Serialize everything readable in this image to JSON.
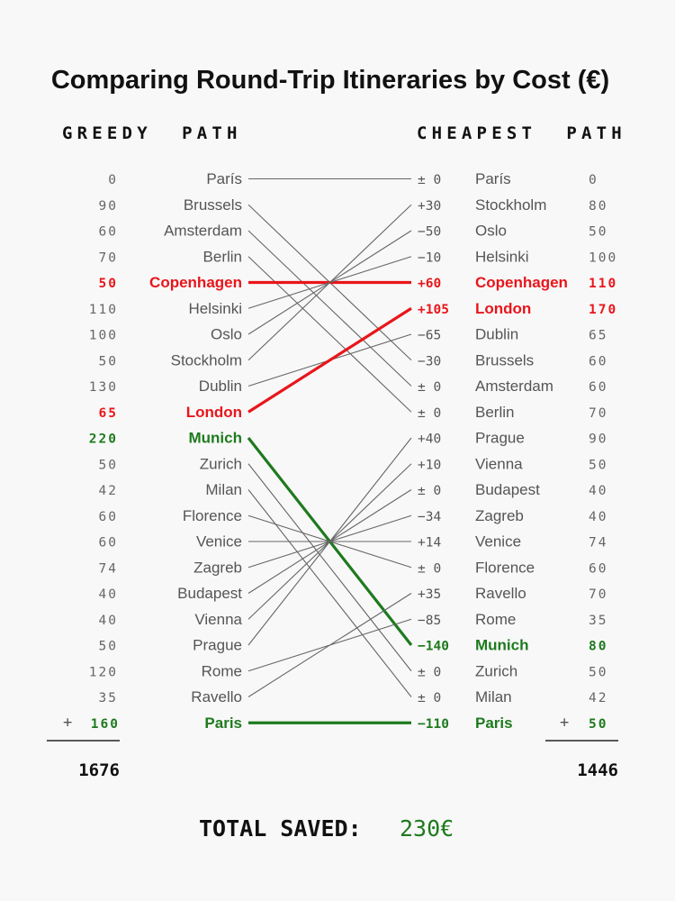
{
  "chart_data": {
    "type": "slopegraph",
    "title": "Comparing Round-Trip Itineraries by Cost (€)",
    "left_header": "GREEDY  PATH",
    "right_header": "CHEAPEST  PATH",
    "greedy_path": [
      {
        "city": "París",
        "cost": "0"
      },
      {
        "city": "Brussels",
        "cost": "90"
      },
      {
        "city": "Amsterdam",
        "cost": "60"
      },
      {
        "city": "Berlin",
        "cost": "70"
      },
      {
        "city": "Copenhagen",
        "cost": "50",
        "highlight": "red"
      },
      {
        "city": "Helsinki",
        "cost": "110"
      },
      {
        "city": "Oslo",
        "cost": "100"
      },
      {
        "city": "Stockholm",
        "cost": "50"
      },
      {
        "city": "Dublin",
        "cost": "130"
      },
      {
        "city": "London",
        "cost": "65",
        "highlight": "red"
      },
      {
        "city": "Munich",
        "cost": "220",
        "highlight": "green"
      },
      {
        "city": "Zurich",
        "cost": "50"
      },
      {
        "city": "Milan",
        "cost": "42"
      },
      {
        "city": "Florence",
        "cost": "60"
      },
      {
        "city": "Venice",
        "cost": "60"
      },
      {
        "city": "Zagreb",
        "cost": "74"
      },
      {
        "city": "Budapest",
        "cost": "40"
      },
      {
        "city": "Vienna",
        "cost": "40"
      },
      {
        "city": "Prague",
        "cost": "50"
      },
      {
        "city": "Rome",
        "cost": "120"
      },
      {
        "city": "Ravello",
        "cost": "35"
      },
      {
        "city": "Paris",
        "cost": "160",
        "highlight": "green"
      }
    ],
    "cheapest_path": [
      {
        "city": "París",
        "cost": "0",
        "delta": "± 0"
      },
      {
        "city": "Stockholm",
        "cost": "80",
        "delta": "+30"
      },
      {
        "city": "Oslo",
        "cost": "50",
        "delta": "−50"
      },
      {
        "city": "Helsinki",
        "cost": "100",
        "delta": "−10"
      },
      {
        "city": "Copenhagen",
        "cost": "110",
        "delta": "+60",
        "highlight": "red"
      },
      {
        "city": "London",
        "cost": "170",
        "delta": "+105",
        "highlight": "red"
      },
      {
        "city": "Dublin",
        "cost": "65",
        "delta": "−65"
      },
      {
        "city": "Brussels",
        "cost": "60",
        "delta": "−30"
      },
      {
        "city": "Amsterdam",
        "cost": "60",
        "delta": "± 0"
      },
      {
        "city": "Berlin",
        "cost": "70",
        "delta": "± 0"
      },
      {
        "city": "Prague",
        "cost": "90",
        "delta": "+40"
      },
      {
        "city": "Vienna",
        "cost": "50",
        "delta": "+10"
      },
      {
        "city": "Budapest",
        "cost": "40",
        "delta": "± 0"
      },
      {
        "city": "Zagreb",
        "cost": "40",
        "delta": "−34"
      },
      {
        "city": "Venice",
        "cost": "74",
        "delta": "+14"
      },
      {
        "city": "Florence",
        "cost": "60",
        "delta": "± 0"
      },
      {
        "city": "Ravello",
        "cost": "70",
        "delta": "+35"
      },
      {
        "city": "Rome",
        "cost": "35",
        "delta": "−85"
      },
      {
        "city": "Munich",
        "cost": "80",
        "delta": "−140",
        "highlight": "green"
      },
      {
        "city": "Zurich",
        "cost": "50",
        "delta": "± 0"
      },
      {
        "city": "Milan",
        "cost": "42",
        "delta": "± 0"
      },
      {
        "city": "Paris",
        "cost": "50",
        "delta": "−110",
        "highlight": "green"
      }
    ],
    "connections": [
      [
        0,
        0
      ],
      [
        1,
        7
      ],
      [
        2,
        8
      ],
      [
        3,
        9
      ],
      [
        4,
        4
      ],
      [
        5,
        3
      ],
      [
        6,
        2
      ],
      [
        7,
        1
      ],
      [
        8,
        6
      ],
      [
        9,
        5
      ],
      [
        10,
        18
      ],
      [
        11,
        19
      ],
      [
        12,
        20
      ],
      [
        13,
        15
      ],
      [
        14,
        14
      ],
      [
        15,
        13
      ],
      [
        16,
        12
      ],
      [
        17,
        11
      ],
      [
        18,
        10
      ],
      [
        19,
        17
      ],
      [
        20,
        16
      ],
      [
        21,
        21
      ]
    ],
    "plus_sign": "+",
    "greedy_total": "1676",
    "cheapest_total": "1446",
    "total_saved_label": "TOTAL SAVED:",
    "total_saved_value": "230€",
    "colors": {
      "red": "#e8161b",
      "green": "#1e7a1e",
      "line": "#666666"
    }
  }
}
